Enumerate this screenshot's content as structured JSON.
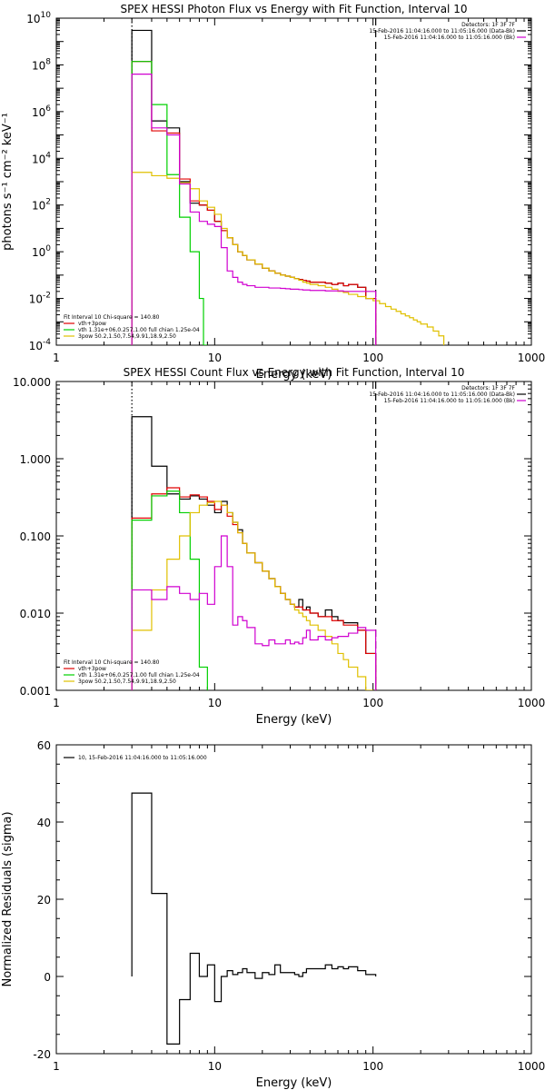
{
  "chart_data": [
    {
      "type": "line",
      "title": "SPEX HESSI Photon Flux vs Energy with Fit Function, Interval 10",
      "xlabel": "Energy (keV)",
      "ylabel": "photons s⁻¹ cm⁻² keV⁻¹",
      "xscale": "log",
      "yscale": "log",
      "xlim": [
        1,
        1000
      ],
      "ylim": [
        0.0001,
        10000000000
      ],
      "x_ticks": [
        {
          "v": 1,
          "label": "1"
        },
        {
          "v": 10,
          "label": "10"
        },
        {
          "v": 100,
          "label": "100"
        },
        {
          "v": 1000,
          "label": "1000"
        }
      ],
      "y_ticks": [
        {
          "v": 0.0001,
          "base": "10",
          "exp": "-4"
        },
        {
          "v": 0.01,
          "base": "10",
          "exp": "-2"
        },
        {
          "v": 1,
          "base": "10",
          "exp": "0"
        },
        {
          "v": 100,
          "base": "10",
          "exp": "2"
        },
        {
          "v": 10000,
          "base": "10",
          "exp": "4"
        },
        {
          "v": 1000000,
          "base": "10",
          "exp": "6"
        },
        {
          "v": 100000000,
          "base": "10",
          "exp": "8"
        },
        {
          "v": 10000000000,
          "base": "10",
          "exp": "10"
        }
      ],
      "vlines": [
        {
          "x": 3,
          "style": "dotted",
          "color": "#000000"
        },
        {
          "x": 104,
          "style": "dashed",
          "color": "#000000"
        }
      ],
      "legend_top": [
        {
          "label": "Detectors: 1F 3F 7F",
          "color": ""
        },
        {
          "label": "15-Feb-2016 11:04:16.000 to 11:05:16.000 (Data-Bk)",
          "color": "#000000"
        },
        {
          "label": "15-Feb-2016 11:04:16.000 to 11:05:16.000 (Bk)",
          "color": "#d000d0"
        }
      ],
      "legend_bottom": [
        {
          "label": "Fit Interval 10    Chi-square = 140.80",
          "color": ""
        },
        {
          "label": "vth+3pow",
          "color": "#e00000"
        },
        {
          "label": "vth 1.31e+06,0.257,1.00  full chian 1.25e-04",
          "color": "#00d000"
        },
        {
          "label": "3pow 50.2,1.50,7.54,9.91,18.9,2.50",
          "color": "#e0c000"
        }
      ],
      "series": [
        {
          "color": "#000000",
          "label_ref": 1,
          "edges": [
            3,
            4,
            5,
            6,
            7,
            8,
            9,
            10,
            11,
            12,
            13,
            14,
            15,
            16,
            18,
            20,
            22,
            24,
            26,
            28,
            30,
            32,
            34,
            36,
            38,
            40,
            45,
            50,
            55,
            60,
            65,
            70,
            80,
            90,
            104
          ],
          "values": [
            3000000000.0,
            400000.0,
            200000.0,
            1000.0,
            120,
            100,
            60,
            20,
            8,
            4,
            2,
            1,
            0.7,
            0.45,
            0.3,
            0.2,
            0.15,
            0.12,
            0.1,
            0.09,
            0.08,
            0.07,
            0.065,
            0.06,
            0.055,
            0.05,
            0.05,
            0.045,
            0.04,
            0.045,
            0.035,
            0.04,
            0.03,
            0.01
          ]
        },
        {
          "color": "#e00000",
          "label_ref": 1,
          "edges": [
            3,
            4,
            5,
            6,
            7,
            8,
            9,
            10,
            11,
            12,
            13,
            14,
            15,
            16,
            18,
            20,
            22,
            24,
            26,
            28,
            30,
            32,
            34,
            36,
            38,
            40,
            45,
            50,
            55,
            60,
            65,
            70,
            80,
            90,
            104
          ],
          "values": [
            140000000.0,
            150000.0,
            120000.0,
            1300.0,
            150,
            100,
            60,
            20,
            8,
            4,
            2,
            1,
            0.7,
            0.45,
            0.3,
            0.2,
            0.15,
            0.12,
            0.1,
            0.09,
            0.08,
            0.07,
            0.065,
            0.06,
            0.055,
            0.05,
            0.05,
            0.045,
            0.04,
            0.045,
            0.035,
            0.04,
            0.03,
            0.01
          ]
        },
        {
          "color": "#00d000",
          "label_ref": 2,
          "edges": [
            3,
            4,
            5,
            6,
            7,
            8,
            8.5,
            9
          ],
          "values": [
            140000000.0,
            2000000.0,
            2000.0,
            30,
            1,
            0.01,
            0.0001
          ]
        },
        {
          "color": "#e0c000",
          "label_ref": 3,
          "edges": [
            3,
            4,
            5,
            6,
            7,
            8,
            9,
            10,
            11,
            12,
            13,
            14,
            15,
            16,
            18,
            20,
            22,
            24,
            26,
            28,
            30,
            32,
            34,
            36,
            38,
            40,
            45,
            50,
            55,
            60,
            65,
            70,
            80,
            90,
            100,
            110,
            120,
            130,
            140,
            150,
            160,
            170,
            180,
            190,
            200,
            220,
            240,
            260,
            280
          ],
          "values": [
            2500,
            1800,
            1400,
            900,
            500,
            150,
            80,
            40,
            10,
            4,
            2,
            1,
            0.7,
            0.45,
            0.3,
            0.2,
            0.15,
            0.12,
            0.1,
            0.09,
            0.08,
            0.07,
            0.06,
            0.05,
            0.045,
            0.04,
            0.035,
            0.03,
            0.025,
            0.02,
            0.018,
            0.015,
            0.012,
            0.01,
            0.008,
            0.006,
            0.0045,
            0.0035,
            0.0028,
            0.0022,
            0.0018,
            0.0015,
            0.0012,
            0.001,
            0.0008,
            0.0006,
            0.0004,
            0.00025
          ]
        },
        {
          "color": "#d000d0",
          "label_ref": 2,
          "edges": [
            3,
            4,
            5,
            6,
            7,
            8,
            9,
            10,
            11,
            12,
            13,
            14,
            15,
            16,
            18,
            20,
            22,
            24,
            26,
            28,
            30,
            32,
            34,
            36,
            38,
            40,
            45,
            50,
            55,
            60,
            65,
            70,
            80,
            90,
            104
          ],
          "values": [
            40000000.0,
            200000.0,
            100000.0,
            800,
            50,
            20,
            15,
            12,
            1.5,
            0.15,
            0.08,
            0.05,
            0.04,
            0.035,
            0.03,
            0.03,
            0.028,
            0.028,
            0.027,
            0.026,
            0.025,
            0.025,
            0.024,
            0.023,
            0.023,
            0.022,
            0.022,
            0.021,
            0.021,
            0.021,
            0.02,
            0.02,
            0.02,
            0.02
          ]
        }
      ]
    },
    {
      "type": "line",
      "title": "SPEX HESSI Count Flux vs Energy with Fit Function, Interval 10",
      "xlabel": "Energy (keV)",
      "ylabel": "",
      "xscale": "log",
      "yscale": "log",
      "xlim": [
        1,
        1000
      ],
      "ylim": [
        0.001,
        10
      ],
      "x_ticks": [
        {
          "v": 1,
          "label": "1"
        },
        {
          "v": 10,
          "label": "10"
        },
        {
          "v": 100,
          "label": "100"
        },
        {
          "v": 1000,
          "label": "1000"
        }
      ],
      "y_ticks": [
        {
          "v": 0.001,
          "label": "0.001"
        },
        {
          "v": 0.01,
          "label": "0.010"
        },
        {
          "v": 0.1,
          "label": "0.100"
        },
        {
          "v": 1,
          "label": "1.000"
        },
        {
          "v": 10,
          "label": "10.000"
        }
      ],
      "vlines": [
        {
          "x": 3,
          "style": "dotted",
          "color": "#000000"
        },
        {
          "x": 104,
          "style": "dashed",
          "color": "#000000"
        }
      ],
      "legend_top": [
        {
          "label": "Detectors: 1F 3F 7F",
          "color": ""
        },
        {
          "label": "15-Feb-2016 11:04:16.000 to 11:05:16.000 (Data-Bk)",
          "color": "#000000"
        },
        {
          "label": "15-Feb-2016 11:04:16.000 to 11:05:16.000 (Bk)",
          "color": "#d000d0"
        }
      ],
      "legend_bottom": [
        {
          "label": "Fit Interval 10    Chi-square = 140.80",
          "color": ""
        },
        {
          "label": "vth+3pow",
          "color": "#e00000"
        },
        {
          "label": "vth 1.31e+06,0.257,1.00  full chian 1.25e-04",
          "color": "#00d000"
        },
        {
          "label": "3pow 50.2,1.50,7.54,9.91,18.9,2.50",
          "color": "#e0c000"
        }
      ],
      "series": [
        {
          "color": "#000000",
          "label_ref": 1,
          "edges": [
            3,
            4,
            5,
            6,
            7,
            8,
            9,
            10,
            11,
            12,
            13,
            14,
            15,
            16,
            18,
            20,
            22,
            24,
            26,
            28,
            30,
            32,
            34,
            36,
            38,
            40,
            45,
            50,
            55,
            60,
            65,
            70,
            80,
            90,
            104
          ],
          "values": [
            3.5,
            0.8,
            0.35,
            0.3,
            0.33,
            0.3,
            0.25,
            0.2,
            0.28,
            0.2,
            0.15,
            0.12,
            0.08,
            0.06,
            0.045,
            0.035,
            0.028,
            0.022,
            0.018,
            0.015,
            0.013,
            0.012,
            0.015,
            0.011,
            0.012,
            0.01,
            0.009,
            0.011,
            0.009,
            0.008,
            0.0075,
            0.0075,
            0.006,
            0.003
          ]
        },
        {
          "color": "#e00000",
          "label_ref": 1,
          "edges": [
            3,
            4,
            5,
            6,
            7,
            8,
            9,
            10,
            11,
            12,
            13,
            14,
            15,
            16,
            18,
            20,
            22,
            24,
            26,
            28,
            30,
            32,
            34,
            36,
            38,
            40,
            45,
            50,
            55,
            60,
            65,
            70,
            80,
            90,
            104
          ],
          "values": [
            0.17,
            0.35,
            0.42,
            0.32,
            0.34,
            0.32,
            0.28,
            0.22,
            0.25,
            0.18,
            0.14,
            0.11,
            0.08,
            0.06,
            0.045,
            0.035,
            0.028,
            0.022,
            0.018,
            0.015,
            0.013,
            0.012,
            0.012,
            0.011,
            0.011,
            0.01,
            0.009,
            0.009,
            0.008,
            0.008,
            0.007,
            0.007,
            0.006,
            0.003
          ]
        },
        {
          "color": "#00d000",
          "label_ref": 2,
          "edges": [
            3,
            4,
            5,
            6,
            7,
            8,
            9
          ],
          "values": [
            0.16,
            0.33,
            0.38,
            0.2,
            0.05,
            0.002
          ]
        },
        {
          "color": "#e0c000",
          "label_ref": 3,
          "edges": [
            3,
            4,
            5,
            6,
            7,
            8,
            9,
            10,
            11,
            12,
            13,
            14,
            15,
            16,
            18,
            20,
            22,
            24,
            26,
            28,
            30,
            32,
            34,
            36,
            38,
            40,
            45,
            50,
            55,
            60,
            65,
            70,
            80,
            90,
            100
          ],
          "values": [
            0.006,
            0.02,
            0.05,
            0.1,
            0.2,
            0.25,
            0.27,
            0.28,
            0.25,
            0.2,
            0.15,
            0.11,
            0.08,
            0.06,
            0.045,
            0.035,
            0.028,
            0.022,
            0.018,
            0.015,
            0.013,
            0.011,
            0.01,
            0.009,
            0.008,
            0.007,
            0.006,
            0.005,
            0.004,
            0.003,
            0.0025,
            0.002,
            0.0015,
            0.001
          ]
        },
        {
          "color": "#d000d0",
          "label_ref": 2,
          "edges": [
            3,
            4,
            5,
            6,
            7,
            8,
            9,
            10,
            11,
            12,
            13,
            14,
            15,
            16,
            18,
            20,
            22,
            24,
            26,
            28,
            30,
            32,
            34,
            36,
            38,
            40,
            45,
            50,
            55,
            60,
            65,
            70,
            80,
            90,
            104
          ],
          "values": [
            0.02,
            0.015,
            0.022,
            0.018,
            0.015,
            0.018,
            0.013,
            0.04,
            0.1,
            0.04,
            0.007,
            0.009,
            0.008,
            0.0065,
            0.004,
            0.0038,
            0.0045,
            0.004,
            0.004,
            0.0045,
            0.004,
            0.0042,
            0.004,
            0.0048,
            0.006,
            0.0045,
            0.005,
            0.0045,
            0.0048,
            0.005,
            0.005,
            0.0055,
            0.0065,
            0.006
          ]
        }
      ]
    },
    {
      "type": "line",
      "title": "",
      "xlabel": "Energy (keV)",
      "ylabel": "Normalized Residuals (sigma)",
      "xscale": "log",
      "yscale": "linear",
      "xlim": [
        1,
        1000
      ],
      "ylim": [
        -20,
        60
      ],
      "x_ticks": [
        {
          "v": 1,
          "label": "1"
        },
        {
          "v": 10,
          "label": "10"
        },
        {
          "v": 100,
          "label": "100"
        },
        {
          "v": 1000,
          "label": "1000"
        }
      ],
      "y_ticks": [
        {
          "v": -20,
          "label": "-20"
        },
        {
          "v": 0,
          "label": "0"
        },
        {
          "v": 20,
          "label": "20"
        },
        {
          "v": 40,
          "label": "40"
        },
        {
          "v": 60,
          "label": "60"
        }
      ],
      "vlines": [],
      "legend_top": [],
      "legend_bottom": [],
      "legend_top_left": [
        {
          "label": "10, 15-Feb-2016 11:04:16.000 to 11:05:16.000",
          "color": "#000000"
        }
      ],
      "series": [
        {
          "color": "#000000",
          "edges": [
            3,
            4,
            5,
            6,
            7,
            8,
            9,
            10,
            11,
            12,
            13,
            14,
            15,
            16,
            18,
            20,
            22,
            24,
            26,
            28,
            30,
            32,
            34,
            36,
            38,
            40,
            45,
            50,
            55,
            60,
            65,
            70,
            80,
            90,
            104
          ],
          "values": [
            47.5,
            21.5,
            -17.5,
            -6,
            6,
            0,
            3,
            -6.5,
            0,
            1.5,
            0.5,
            1,
            2,
            1,
            -0.5,
            1,
            0.5,
            3,
            1,
            1,
            1,
            0.5,
            0,
            1,
            2,
            2,
            2,
            3,
            2,
            2.5,
            2,
            2.5,
            1.5,
            0.5
          ],
          "closed": true
        }
      ]
    }
  ]
}
